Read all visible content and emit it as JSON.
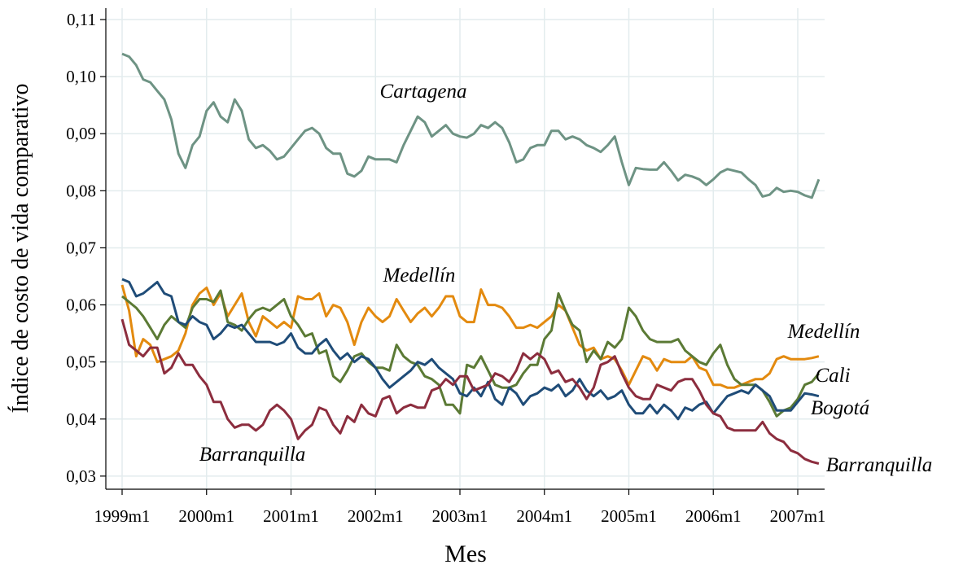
{
  "chart_data": {
    "type": "line",
    "ylabel": "Índice de costo de vida comparativo",
    "xlabel": "Mes",
    "categories": [
      "1999m1",
      null,
      null,
      null,
      null,
      null,
      null,
      null,
      null,
      null,
      null,
      null,
      "2000m1",
      null,
      null,
      null,
      null,
      null,
      null,
      null,
      null,
      null,
      null,
      null,
      "2001m1",
      null,
      null,
      null,
      null,
      null,
      null,
      null,
      null,
      null,
      null,
      null,
      "2002m1",
      null,
      null,
      null,
      null,
      null,
      null,
      null,
      null,
      null,
      null,
      null,
      "2003m1",
      null,
      null,
      null,
      null,
      null,
      null,
      null,
      null,
      null,
      null,
      null,
      "2004m1",
      null,
      null,
      null,
      null,
      null,
      null,
      null,
      null,
      null,
      null,
      null,
      "2005m1",
      null,
      null,
      null,
      null,
      null,
      null,
      null,
      null,
      null,
      null,
      null,
      "2006m1",
      null,
      null,
      null,
      null,
      null,
      null,
      null,
      null,
      null,
      null,
      null,
      "2007m1",
      null,
      null,
      null
    ],
    "series": [
      {
        "name": "Cartagena",
        "color": "#6e9384",
        "values": [
          0.104,
          0.1035,
          0.102,
          0.0995,
          0.099,
          0.0975,
          0.096,
          0.0925,
          0.0865,
          0.084,
          0.088,
          0.0895,
          0.094,
          0.0955,
          0.093,
          0.092,
          0.096,
          0.094,
          0.089,
          0.0875,
          0.088,
          0.087,
          0.0855,
          0.086,
          0.0875,
          0.089,
          0.0905,
          0.091,
          0.09,
          0.0875,
          0.0865,
          0.0865,
          0.083,
          0.0825,
          0.0835,
          0.086,
          0.0855,
          0.0855,
          0.0855,
          0.085,
          0.088,
          0.0905,
          0.093,
          0.092,
          0.0895,
          0.0905,
          0.0915,
          0.09,
          0.0895,
          0.0893,
          0.09,
          0.0915,
          0.091,
          0.092,
          0.091,
          0.0885,
          0.085,
          0.0855,
          0.0875,
          0.088,
          0.088,
          0.0905,
          0.0905,
          0.089,
          0.0895,
          0.089,
          0.088,
          0.0875,
          0.0868,
          0.088,
          0.0895,
          0.085,
          0.081,
          0.084,
          0.0838,
          0.0837,
          0.0837,
          0.085,
          0.0835,
          0.0818,
          0.0828,
          0.0825,
          0.082,
          0.081,
          0.082,
          0.0832,
          0.0838,
          0.0835,
          0.0832,
          0.082,
          0.081,
          0.079,
          0.0793,
          0.0805,
          0.0798,
          0.08,
          0.0798,
          0.0792,
          0.0788,
          0.082
        ]
      },
      {
        "name": "Medellín",
        "color": "#e38a0f",
        "values": [
          0.0635,
          0.059,
          0.051,
          0.054,
          0.053,
          0.05,
          0.0505,
          0.051,
          0.052,
          0.055,
          0.06,
          0.062,
          0.063,
          0.06,
          0.062,
          0.058,
          0.06,
          0.062,
          0.057,
          0.0545,
          0.058,
          0.057,
          0.056,
          0.057,
          0.056,
          0.0615,
          0.061,
          0.061,
          0.062,
          0.058,
          0.06,
          0.0595,
          0.057,
          0.053,
          0.057,
          0.0595,
          0.058,
          0.057,
          0.058,
          0.061,
          0.059,
          0.057,
          0.0585,
          0.0595,
          0.058,
          0.0595,
          0.0615,
          0.0615,
          0.058,
          0.057,
          0.057,
          0.0627,
          0.06,
          0.06,
          0.0595,
          0.058,
          0.056,
          0.056,
          0.0565,
          0.056,
          0.057,
          0.058,
          0.06,
          0.059,
          0.056,
          0.053,
          0.052,
          0.0525,
          0.0505,
          0.051,
          0.0505,
          0.0485,
          0.046,
          0.0485,
          0.051,
          0.0505,
          0.0485,
          0.0505,
          0.05,
          0.05,
          0.05,
          0.051,
          0.049,
          0.0485,
          0.046,
          0.046,
          0.0455,
          0.0455,
          0.046,
          0.0465,
          0.047,
          0.047,
          0.048,
          0.0505,
          0.051,
          0.0505,
          0.0505,
          0.0505,
          0.0507,
          0.051
        ]
      },
      {
        "name": "Cali",
        "color": "#5b7a35",
        "values": [
          0.0615,
          0.0605,
          0.0595,
          0.058,
          0.056,
          0.054,
          0.0565,
          0.058,
          0.057,
          0.056,
          0.0595,
          0.061,
          0.061,
          0.0605,
          0.0625,
          0.057,
          0.0565,
          0.0555,
          0.0575,
          0.059,
          0.0595,
          0.059,
          0.06,
          0.061,
          0.058,
          0.0565,
          0.0545,
          0.055,
          0.0515,
          0.052,
          0.0475,
          0.0465,
          0.0485,
          0.051,
          0.0515,
          0.05,
          0.049,
          0.049,
          0.0485,
          0.053,
          0.051,
          0.05,
          0.0495,
          0.0475,
          0.047,
          0.046,
          0.0425,
          0.0425,
          0.041,
          0.0495,
          0.049,
          0.051,
          0.0485,
          0.046,
          0.0455,
          0.0455,
          0.046,
          0.048,
          0.0495,
          0.0495,
          0.054,
          0.0555,
          0.062,
          0.059,
          0.0565,
          0.0555,
          0.05,
          0.052,
          0.0505,
          0.0535,
          0.0525,
          0.054,
          0.0595,
          0.058,
          0.0555,
          0.054,
          0.0535,
          0.0535,
          0.0535,
          0.054,
          0.052,
          0.051,
          0.05,
          0.0495,
          0.0515,
          0.053,
          0.0495,
          0.047,
          0.046,
          0.046,
          0.046,
          0.045,
          0.043,
          0.0405,
          0.0415,
          0.042,
          0.0435,
          0.046,
          0.0465,
          0.048
        ]
      },
      {
        "name": "Bogotá",
        "color": "#1f4c78",
        "values": [
          0.0645,
          0.064,
          0.0615,
          0.062,
          0.063,
          0.064,
          0.062,
          0.0615,
          0.057,
          0.0565,
          0.058,
          0.057,
          0.0565,
          0.054,
          0.055,
          0.0565,
          0.056,
          0.0565,
          0.055,
          0.0535,
          0.0535,
          0.0535,
          0.053,
          0.0535,
          0.055,
          0.0525,
          0.0515,
          0.0515,
          0.053,
          0.054,
          0.052,
          0.0505,
          0.0515,
          0.05,
          0.051,
          0.0505,
          0.049,
          0.047,
          0.0455,
          0.0465,
          0.0475,
          0.0485,
          0.05,
          0.0495,
          0.0505,
          0.049,
          0.048,
          0.047,
          0.0445,
          0.044,
          0.0455,
          0.044,
          0.0465,
          0.0435,
          0.0425,
          0.0455,
          0.0445,
          0.0425,
          0.044,
          0.0445,
          0.0455,
          0.045,
          0.046,
          0.044,
          0.045,
          0.047,
          0.045,
          0.044,
          0.045,
          0.0435,
          0.044,
          0.045,
          0.0425,
          0.041,
          0.041,
          0.0425,
          0.041,
          0.0425,
          0.0415,
          0.04,
          0.042,
          0.0415,
          0.0425,
          0.043,
          0.041,
          0.0425,
          0.044,
          0.0445,
          0.045,
          0.0445,
          0.046,
          0.045,
          0.044,
          0.0415,
          0.0415,
          0.0415,
          0.043,
          0.0445,
          0.0443,
          0.044
        ]
      },
      {
        "name": "Barranquilla",
        "color": "#8c2d3e",
        "values": [
          0.0575,
          0.053,
          0.052,
          0.051,
          0.0525,
          0.0525,
          0.048,
          0.049,
          0.0515,
          0.0495,
          0.0495,
          0.0475,
          0.046,
          0.043,
          0.043,
          0.04,
          0.0385,
          0.039,
          0.039,
          0.038,
          0.039,
          0.0415,
          0.0425,
          0.0415,
          0.04,
          0.0365,
          0.038,
          0.039,
          0.042,
          0.0415,
          0.039,
          0.0375,
          0.0405,
          0.0395,
          0.0425,
          0.041,
          0.0405,
          0.0435,
          0.044,
          0.041,
          0.042,
          0.0425,
          0.042,
          0.042,
          0.045,
          0.0455,
          0.047,
          0.046,
          0.0475,
          0.0475,
          0.045,
          0.0455,
          0.046,
          0.048,
          0.0475,
          0.0465,
          0.0485,
          0.0515,
          0.0505,
          0.0515,
          0.0505,
          0.048,
          0.0485,
          0.0465,
          0.047,
          0.0455,
          0.0435,
          0.0455,
          0.0495,
          0.05,
          0.051,
          0.048,
          0.0455,
          0.044,
          0.0435,
          0.0435,
          0.046,
          0.0455,
          0.045,
          0.0465,
          0.047,
          0.047,
          0.045,
          0.0425,
          0.041,
          0.0405,
          0.0385,
          0.038,
          0.038,
          0.038,
          0.038,
          0.0395,
          0.0375,
          0.0365,
          0.036,
          0.0345,
          0.034,
          0.033,
          0.0325,
          0.0322
        ]
      }
    ],
    "annotations": [
      "Cartagena",
      "Medellín",
      "Medellín",
      "Cali",
      "Bogotá",
      "Barranquilla",
      "Barranquilla"
    ],
    "ylim": [
      0.0277,
      0.112
    ],
    "yticks": [
      {
        "value": 0.03,
        "label": "0,03"
      },
      {
        "value": 0.04,
        "label": "0,04"
      },
      {
        "value": 0.05,
        "label": "0,05"
      },
      {
        "value": 0.06,
        "label": "0,06"
      },
      {
        "value": 0.07,
        "label": "0,07"
      },
      {
        "value": 0.08,
        "label": "0,08"
      },
      {
        "value": 0.09,
        "label": "0,09"
      },
      {
        "value": 0.1,
        "label": "0,10"
      },
      {
        "value": 0.11,
        "label": "0,11"
      }
    ],
    "grid": true
  }
}
